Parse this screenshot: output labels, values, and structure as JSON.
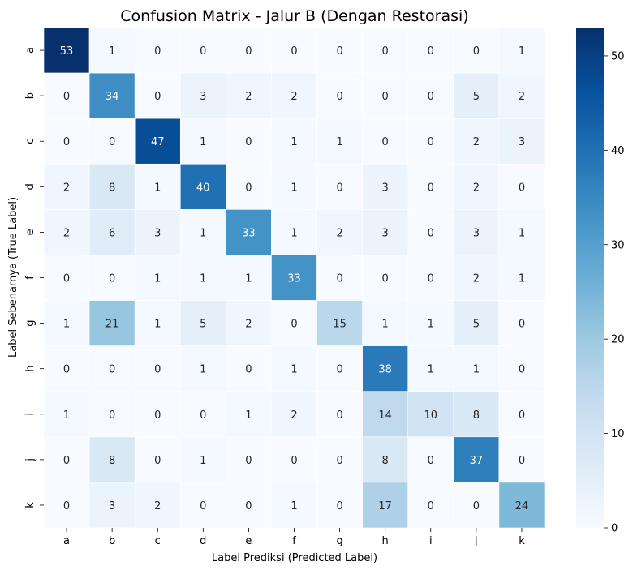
{
  "chart_data": {
    "type": "heatmap",
    "title": "Confusion Matrix - Jalur B (Dengan Restorasi)",
    "xlabel": "Label Prediksi (Predicted Label)",
    "ylabel": "Label Sebenarnya (True Label)",
    "x_categories": [
      "a",
      "b",
      "c",
      "d",
      "e",
      "f",
      "g",
      "h",
      "i",
      "j",
      "k"
    ],
    "y_categories": [
      "a",
      "b",
      "c",
      "d",
      "e",
      "f",
      "g",
      "h",
      "i",
      "j",
      "k"
    ],
    "values": [
      [
        53,
        1,
        0,
        0,
        0,
        0,
        0,
        0,
        0,
        0,
        1
      ],
      [
        0,
        34,
        0,
        3,
        2,
        2,
        0,
        0,
        0,
        5,
        2
      ],
      [
        0,
        0,
        47,
        1,
        0,
        1,
        1,
        0,
        0,
        2,
        3
      ],
      [
        2,
        8,
        1,
        40,
        0,
        1,
        0,
        3,
        0,
        2,
        0
      ],
      [
        2,
        6,
        3,
        1,
        33,
        1,
        2,
        3,
        0,
        3,
        1
      ],
      [
        0,
        0,
        1,
        1,
        1,
        33,
        0,
        0,
        0,
        2,
        1
      ],
      [
        1,
        21,
        1,
        5,
        2,
        0,
        15,
        1,
        1,
        5,
        0
      ],
      [
        0,
        0,
        0,
        1,
        0,
        1,
        0,
        38,
        1,
        1,
        0
      ],
      [
        1,
        0,
        0,
        0,
        1,
        2,
        0,
        14,
        10,
        8,
        0
      ],
      [
        0,
        8,
        0,
        1,
        0,
        0,
        0,
        8,
        0,
        37,
        0
      ],
      [
        0,
        3,
        2,
        0,
        0,
        1,
        0,
        17,
        0,
        0,
        24
      ]
    ],
    "colorbar": {
      "min": 0,
      "max": 53,
      "ticks": [
        0,
        10,
        20,
        30,
        40,
        50
      ]
    },
    "colormap": "Blues",
    "colors": {
      "low": "#f7fbff",
      "high": "#08306b"
    }
  }
}
